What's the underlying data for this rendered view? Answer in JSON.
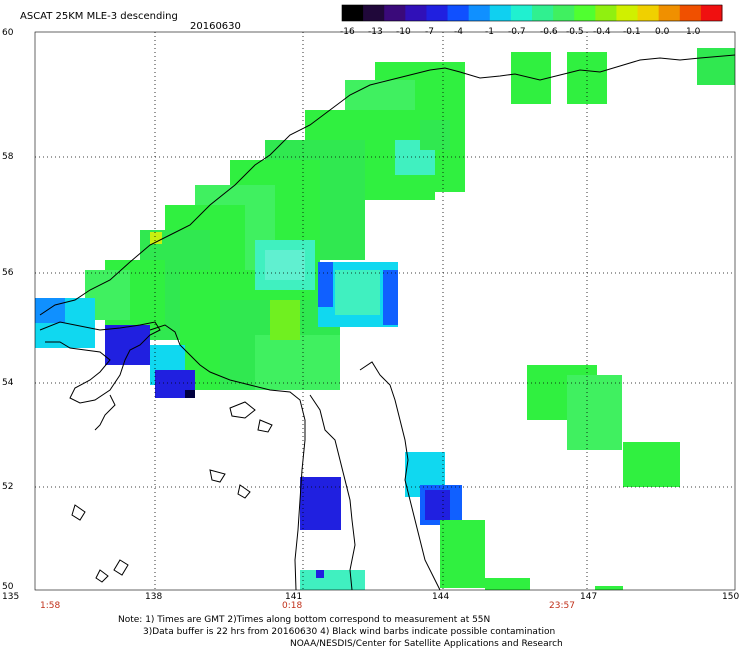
{
  "title": "ASCAT 25KM MLE-3 descending",
  "date": "20160630",
  "colorbar": {
    "labels": [
      "-16",
      "-13",
      "-10",
      "-7",
      "-4",
      "-1",
      "-0.7",
      "-0.6",
      "-0.5",
      "-0.4",
      "-0.1",
      "0.0",
      "1.0"
    ],
    "colors": [
      "#000000",
      "#3a0a6e",
      "#2a10c8",
      "#1030f0",
      "#1080ff",
      "#10c8f0",
      "#20f0c0",
      "#30f060",
      "#40ff20",
      "#80f010",
      "#f0f000",
      "#f09000",
      "#f01010"
    ]
  },
  "axes": {
    "lon_ticks": [
      "135",
      "138",
      "141",
      "144",
      "147",
      "150"
    ],
    "lat_ticks": [
      "60",
      "58",
      "56",
      "54",
      "52",
      "50"
    ]
  },
  "time_labels": [
    "1:58",
    "0:18",
    "23:57"
  ],
  "notes": [
    "Note: 1) Times are GMT 2)Times along bottom correspond to measurement at 55N",
    "3)Data buffer is 22 hrs from 20160630 4) Black wind barbs indicate possible contamination",
    "NOAA/NESDIS/Center for Satellite Applications and Research"
  ]
}
